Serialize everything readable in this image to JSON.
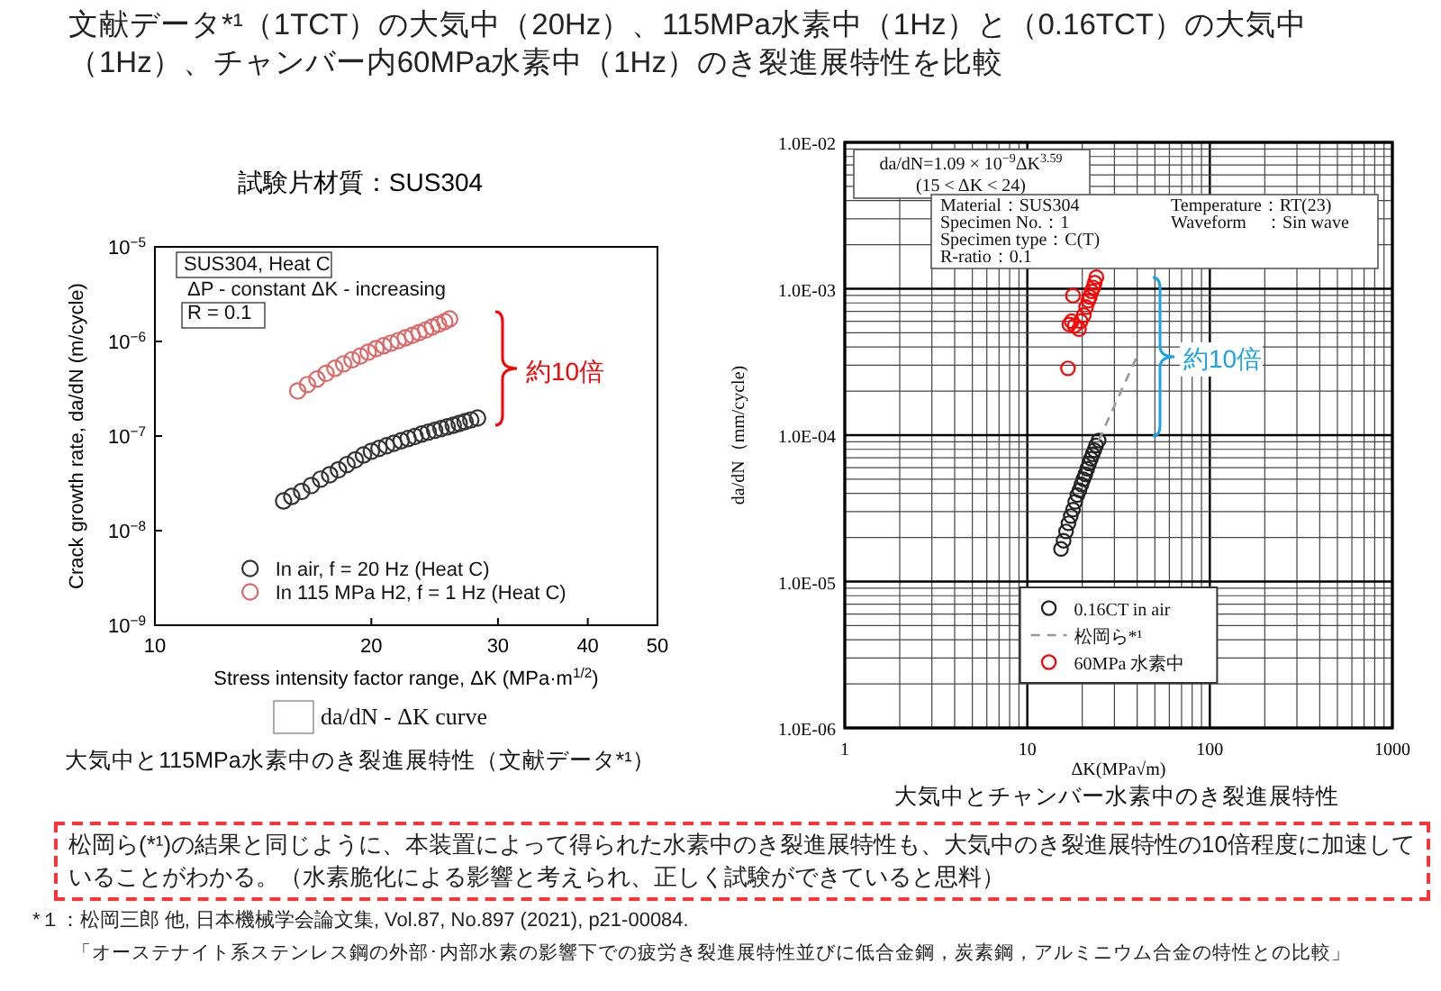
{
  "chart_data": [
    {
      "type": "other",
      "title": "文献データ*¹（1TCT）の大気中（20Hz）、115MPa水素中（1Hz）と（0.16TCT）の大気中（1Hz）、チャンバー内60MPa水素中（1Hz）のき裂進展特性を比較"
    },
    {
      "type": "scatter",
      "title": "試験片材質：SUS304",
      "xlabel": "Stress intensity factor range,  ΔK (MPa·m$^{1/2}$)",
      "ylabel": "Crack growth rate, da/dN (m/cycle)",
      "log": "xy",
      "xlim": [
        10,
        50
      ],
      "xticks": [
        10,
        20,
        30,
        40,
        50
      ],
      "ylim": [
        1e-09,
        1e-05
      ],
      "yticks": [
        {
          "value": 1e-09,
          "label": "10$^{−9}$"
        },
        {
          "value": 1e-08,
          "label": "10$^{−8}$"
        },
        {
          "value": 1e-07,
          "label": "10$^{−7}$"
        },
        {
          "value": 1e-06,
          "label": "10$^{−6}$"
        },
        {
          "value": 1e-05,
          "label": "10$^{−5}$"
        }
      ],
      "marker": "circle",
      "grid": false,
      "legend": "bottom right",
      "series": [
        {
          "name": "In air, f = 20 Hz (Heat C)",
          "color": "#333333",
          "x": [
            15.1,
            15.5,
            16,
            16.5,
            17,
            17.5,
            18,
            18.5,
            19,
            19.5,
            20,
            20.5,
            21,
            21.5,
            22,
            22.5,
            23,
            23.5,
            24,
            24.5,
            25,
            25.5,
            26,
            26.5,
            27,
            27.5,
            28.1
          ],
          "values": [
            2.06e-08,
            2.3e-08,
            2.6e-08,
            3e-08,
            3.5e-08,
            3.9e-08,
            4.4e-08,
            5e-08,
            5.6e-08,
            6.3e-08,
            6.9e-08,
            7.4e-08,
            7.9e-08,
            8.4e-08,
            8.9e-08,
            9.4e-08,
            9.9e-08,
            1.05e-07,
            1.1e-07,
            1.15e-07,
            1.2e-07,
            1.25e-07,
            1.3e-07,
            1.36e-07,
            1.42e-07,
            1.48e-07,
            1.55e-07
          ]
        },
        {
          "name": "In 115 MPa H2, f = 1 Hz (Heat C)",
          "color": "#e06666",
          "x": [
            15.8,
            16.3,
            16.8,
            17.3,
            17.8,
            18.3,
            18.8,
            19.3,
            19.8,
            20.3,
            20.8,
            21.3,
            21.8,
            22.3,
            22.8,
            23.3,
            23.8,
            24.3,
            24.8,
            25.3,
            25.7
          ],
          "values": [
            3e-07,
            3.5e-07,
            4e-07,
            4.6e-07,
            5.2e-07,
            5.8e-07,
            6.4e-07,
            7e-07,
            7.7e-07,
            8.4e-07,
            9e-07,
            9.6e-07,
            1.02e-06,
            1.09e-06,
            1.16e-06,
            1.24e-06,
            1.32e-06,
            1.42e-06,
            1.52e-06,
            1.62e-06,
            1.73e-06
          ]
        }
      ],
      "annotations": [
        "SUS304, Heat C",
        "ΔP - constant  ΔK - increasing",
        "R = 0.1",
        "約10倍",
        "da/dN - ΔK curve",
        "大気中と115MPa水素中のき裂進展特性（文献データ*¹）"
      ]
    },
    {
      "type": "scatter",
      "xlabel": "ΔK(MPa√m)",
      "ylabel": "da/dN（mm/cycle)",
      "log": "xy",
      "xlim": [
        1,
        1000
      ],
      "xticks": [
        1,
        10,
        100,
        1000
      ],
      "ylim": [
        1e-06,
        0.01
      ],
      "yticks": [
        {
          "value": 1e-06,
          "label": "1.0E-06"
        },
        {
          "value": 1e-05,
          "label": "1.0E-05"
        },
        {
          "value": 0.0001,
          "label": "1.0E-04"
        },
        {
          "value": 0.001,
          "label": "1.0E-03"
        },
        {
          "value": 0.01,
          "label": "1.0E-02"
        }
      ],
      "marker": "circle",
      "grid": true,
      "legend": "bottom",
      "series": [
        {
          "name": "0.16CT in air",
          "color": "#222222",
          "x": [
            15.3,
            15.8,
            16.3,
            16.8,
            17.3,
            17.8,
            18.3,
            18.8,
            19.3,
            19.8,
            20.3,
            20.8,
            21.3,
            21.8,
            22.3,
            22.8,
            23.3,
            23.8,
            24.6
          ],
          "values": [
            1.67e-05,
            1.9e-05,
            2.2e-05,
            2.5e-05,
            2.8e-05,
            3.1e-05,
            3.5e-05,
            3.9e-05,
            4.2e-05,
            4.6e-05,
            5e-05,
            5.4e-05,
            5.9e-05,
            6.4e-05,
            6.9e-05,
            7.4e-05,
            7.9e-05,
            8.5e-05,
            9.2e-05
          ]
        },
        {
          "name": "松岡ら*¹",
          "type": "line",
          "line_style": "dashed",
          "marker": "none",
          "color": "#999999",
          "x": [
            24.6,
            40.3
          ],
          "values": [
            9.2e-05,
            0.000355
          ]
        },
        {
          "name": "60MPa 水素中",
          "color": "#ff0000",
          "x": [
            16.7,
            17.0,
            17.5,
            17.8,
            18.2,
            19.2,
            19.6,
            20.4,
            21.0,
            21.6,
            22.0,
            22.5,
            23.0,
            23.4,
            23.9
          ],
          "values": [
            0.000286,
            0.00057,
            0.0006,
            0.000897,
            0.00056,
            0.00053,
            0.0006,
            0.00066,
            0.00075,
            0.00083,
            0.00088,
            0.00096,
            0.00102,
            0.0011,
            0.0012
          ]
        }
      ],
      "annotations": [
        "da/dN=1.09 × 10$^{−9}$ΔK$^{3.59}$",
        "(15 < ΔK < 24)",
        "Material：SUS304",
        "Specimen No.：1",
        "Specimen type：C(T)",
        "R-ratio：0.1",
        "Temperature：RT(23)",
        "Waveform　：Sin wave",
        "約10倍",
        "大気中とチャンバー水素中のき裂進展特性"
      ]
    },
    {
      "type": "other",
      "annotations": [
        "松岡ら(*¹)の結果と同じように、本装置によって得られた水素中のき裂進展特性も、大気中のき裂進展特性の10倍程度に加速していることがわかる。（水素脆化による影響と考えられ、正しく試験ができていると思料）",
        "*１：松岡三郎 他, 日本機械学会論文集, Vol.87, No.897 (2021), p21-00084.",
        "「オーステナイト系ステンレス鋼の外部･内部水素の影響下での疲労き裂進展特性並びに低合金鋼，炭素鋼，アルミニウム合金の特性との比較」"
      ]
    }
  ]
}
